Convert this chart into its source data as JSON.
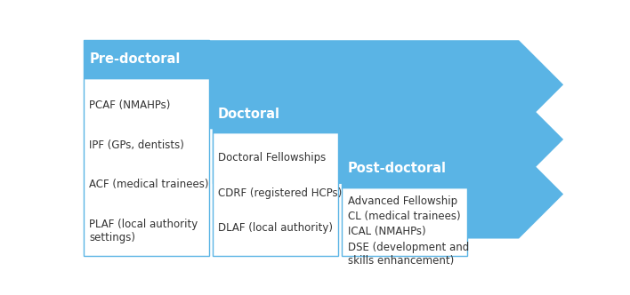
{
  "background_color": "#ffffff",
  "arrow_color": "#5ab4e5",
  "box_fill_color": "#ffffff",
  "box_edge_color": "#5ab4e5",
  "header_fill_color": "#5ab4e5",
  "header_text_color": "#ffffff",
  "body_text_color": "#333333",
  "panels": [
    {
      "header": "Pre-doctoral",
      "body_lines": [
        "PCAF (NMAHPs)",
        "IPF (GPs, dentists)",
        "ACF (medical trainees)",
        "PLAF (local authority\nsettings)"
      ]
    },
    {
      "header": "Doctoral",
      "body_lines": [
        "Doctoral Fellowships",
        "CDRF (registered HCPs)",
        "DLAF (local authority)"
      ]
    },
    {
      "header": "Post-doctoral",
      "body_lines": [
        "Advanced Fellowship",
        "CL (medical trainees)",
        "ICAL (NMAHPs)",
        "DSE (development and\nskills enhancement)"
      ]
    }
  ],
  "figsize": [
    7.08,
    3.32
  ],
  "dpi": 100
}
